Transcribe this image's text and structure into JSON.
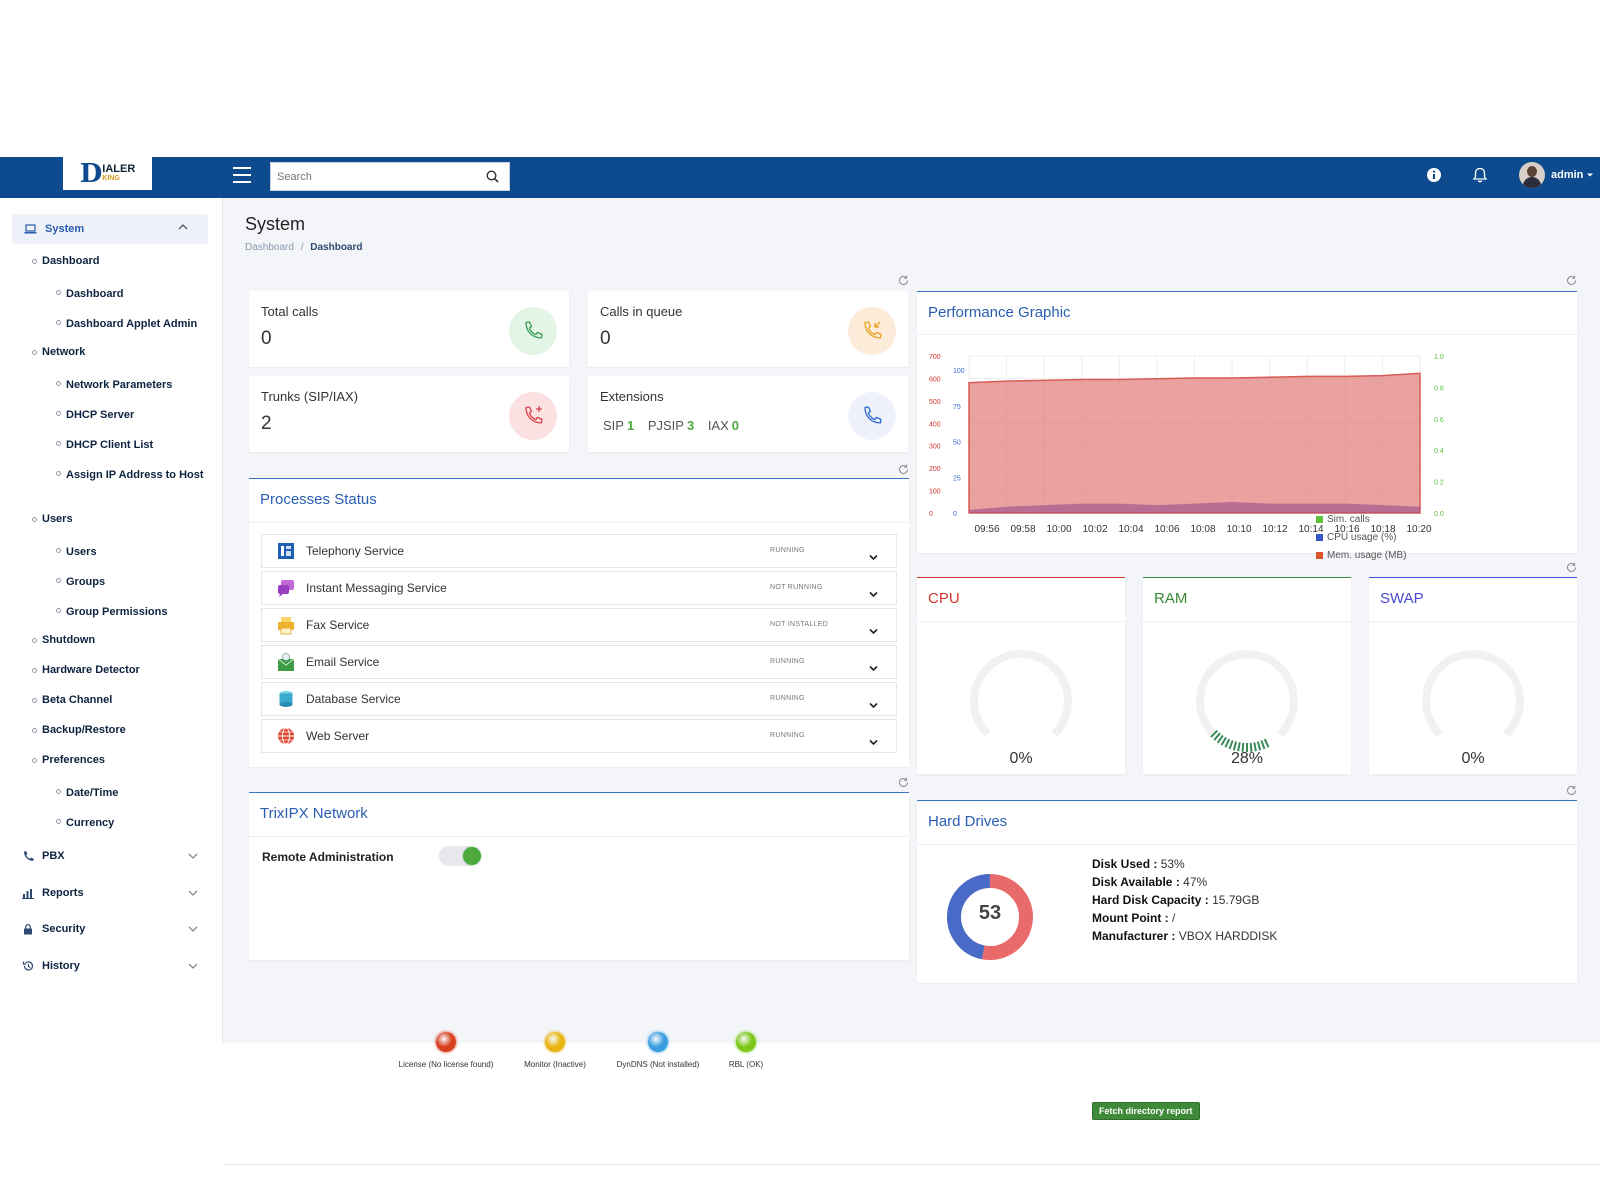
{
  "header": {
    "logo_text": "IALER",
    "logo_letter": "D",
    "logo_sub": "KING",
    "search_placeholder": "Search",
    "user_name": "admin"
  },
  "sidebar": {
    "system_label": "System",
    "items": [
      {
        "label": "Dashboard",
        "level": 1
      },
      {
        "label": "Dashboard",
        "level": 2
      },
      {
        "label": "Dashboard Applet Admin",
        "level": 2
      },
      {
        "label": "Network",
        "level": 1
      },
      {
        "label": "Network Parameters",
        "level": 2
      },
      {
        "label": "DHCP Server",
        "level": 2
      },
      {
        "label": "DHCP Client List",
        "level": 2
      },
      {
        "label": "Assign IP Address to Host",
        "level": 2
      },
      {
        "label": "Users",
        "level": 1
      },
      {
        "label": "Users",
        "level": 2
      },
      {
        "label": "Groups",
        "level": 2
      },
      {
        "label": "Group Permissions",
        "level": 2
      },
      {
        "label": "Shutdown",
        "level": 1
      },
      {
        "label": "Hardware Detector",
        "level": 1
      },
      {
        "label": "Beta Channel",
        "level": 1
      },
      {
        "label": "Backup/Restore",
        "level": 1
      },
      {
        "label": "Preferences",
        "level": 1
      },
      {
        "label": "Date/Time",
        "level": 2
      },
      {
        "label": "Currency",
        "level": 2
      }
    ],
    "groups": [
      "PBX",
      "Reports",
      "Security",
      "History"
    ]
  },
  "page": {
    "title": "System",
    "crumb_root": "Dashboard",
    "crumb_sep": "/",
    "crumb_current": "Dashboard"
  },
  "stats": {
    "total_calls": {
      "label": "Total calls",
      "value": "0"
    },
    "calls_queue": {
      "label": "Calls in queue",
      "value": "0"
    },
    "trunks": {
      "label": "Trunks (SIP/IAX)",
      "value": "2"
    },
    "extensions": {
      "label": "Extensions",
      "sip_label": "SIP",
      "sip": "1",
      "pjsip_label": "PJSIP",
      "pjsip": "3",
      "iax_label": "IAX",
      "iax": "0"
    }
  },
  "processes": {
    "title": "Processes Status",
    "items": [
      {
        "name": "Telephony Service",
        "status": "RUNNING"
      },
      {
        "name": "Instant Messaging Service",
        "status": "NOT RUNNING"
      },
      {
        "name": "Fax Service",
        "status": "NOT INSTALLED"
      },
      {
        "name": "Email Service",
        "status": "RUNNING"
      },
      {
        "name": "Database Service",
        "status": "RUNNING"
      },
      {
        "name": "Web Server",
        "status": "RUNNING"
      }
    ]
  },
  "network": {
    "title": "TrixIPX Network",
    "remote_admin_label": "Remote Administration",
    "remote_admin_on": true,
    "leds": [
      {
        "label": "License (No license found)",
        "color": "#d8401e"
      },
      {
        "label": "Monitor (Inactive)",
        "color": "#e8b412"
      },
      {
        "label": "DynDNS (Not installed)",
        "color": "#3c9ee0"
      },
      {
        "label": "RBL (OK)",
        "color": "#7cc81a"
      }
    ]
  },
  "perf": {
    "title": "Performance Graphic",
    "legend": [
      {
        "label": "Sim. calls",
        "color": "#5cc33a"
      },
      {
        "label": "CPU usage (%)",
        "color": "#3558c8"
      },
      {
        "label": "Mem. usage (MB)",
        "color": "#d9542c"
      }
    ],
    "y_left": [
      "700",
      "600",
      "500",
      "400",
      "300",
      "200",
      "100",
      "0"
    ],
    "y_mid": [
      "100",
      "75",
      "50",
      "25",
      "0"
    ],
    "y_right": [
      "1.0",
      "0.8",
      "0.6",
      "0.4",
      "0.2",
      "0.0"
    ],
    "x_labels": [
      "09:56",
      "09:58",
      "10:00",
      "10:02",
      "10:04",
      "10:06",
      "10:08",
      "10:10",
      "10:12",
      "10:14",
      "10:16",
      "10:18",
      "10:20"
    ]
  },
  "gauges": [
    {
      "title": "CPU",
      "value": 0,
      "label": "0%",
      "title_color": "#d0342c"
    },
    {
      "title": "RAM",
      "value": 28,
      "label": "28%",
      "title_color": "#3a8a3a"
    },
    {
      "title": "SWAP",
      "value": 0,
      "label": "0%",
      "title_color": "#4a4ad0"
    }
  ],
  "drives": {
    "title": "Hard Drives",
    "donut_value": "53",
    "used_pct": 53,
    "used_label": "Disk Used :",
    "used": "53%",
    "avail_label": "Disk Available :",
    "avail": "47%",
    "capacity_label": "Hard Disk Capacity :",
    "capacity": "15.79GB",
    "mount_label": "Mount Point :",
    "mount": "/",
    "manufacturer_label": "Manufacturer :",
    "manufacturer": "VBOX HARDDISK",
    "fetch_label": "Fetch directory report"
  }
}
